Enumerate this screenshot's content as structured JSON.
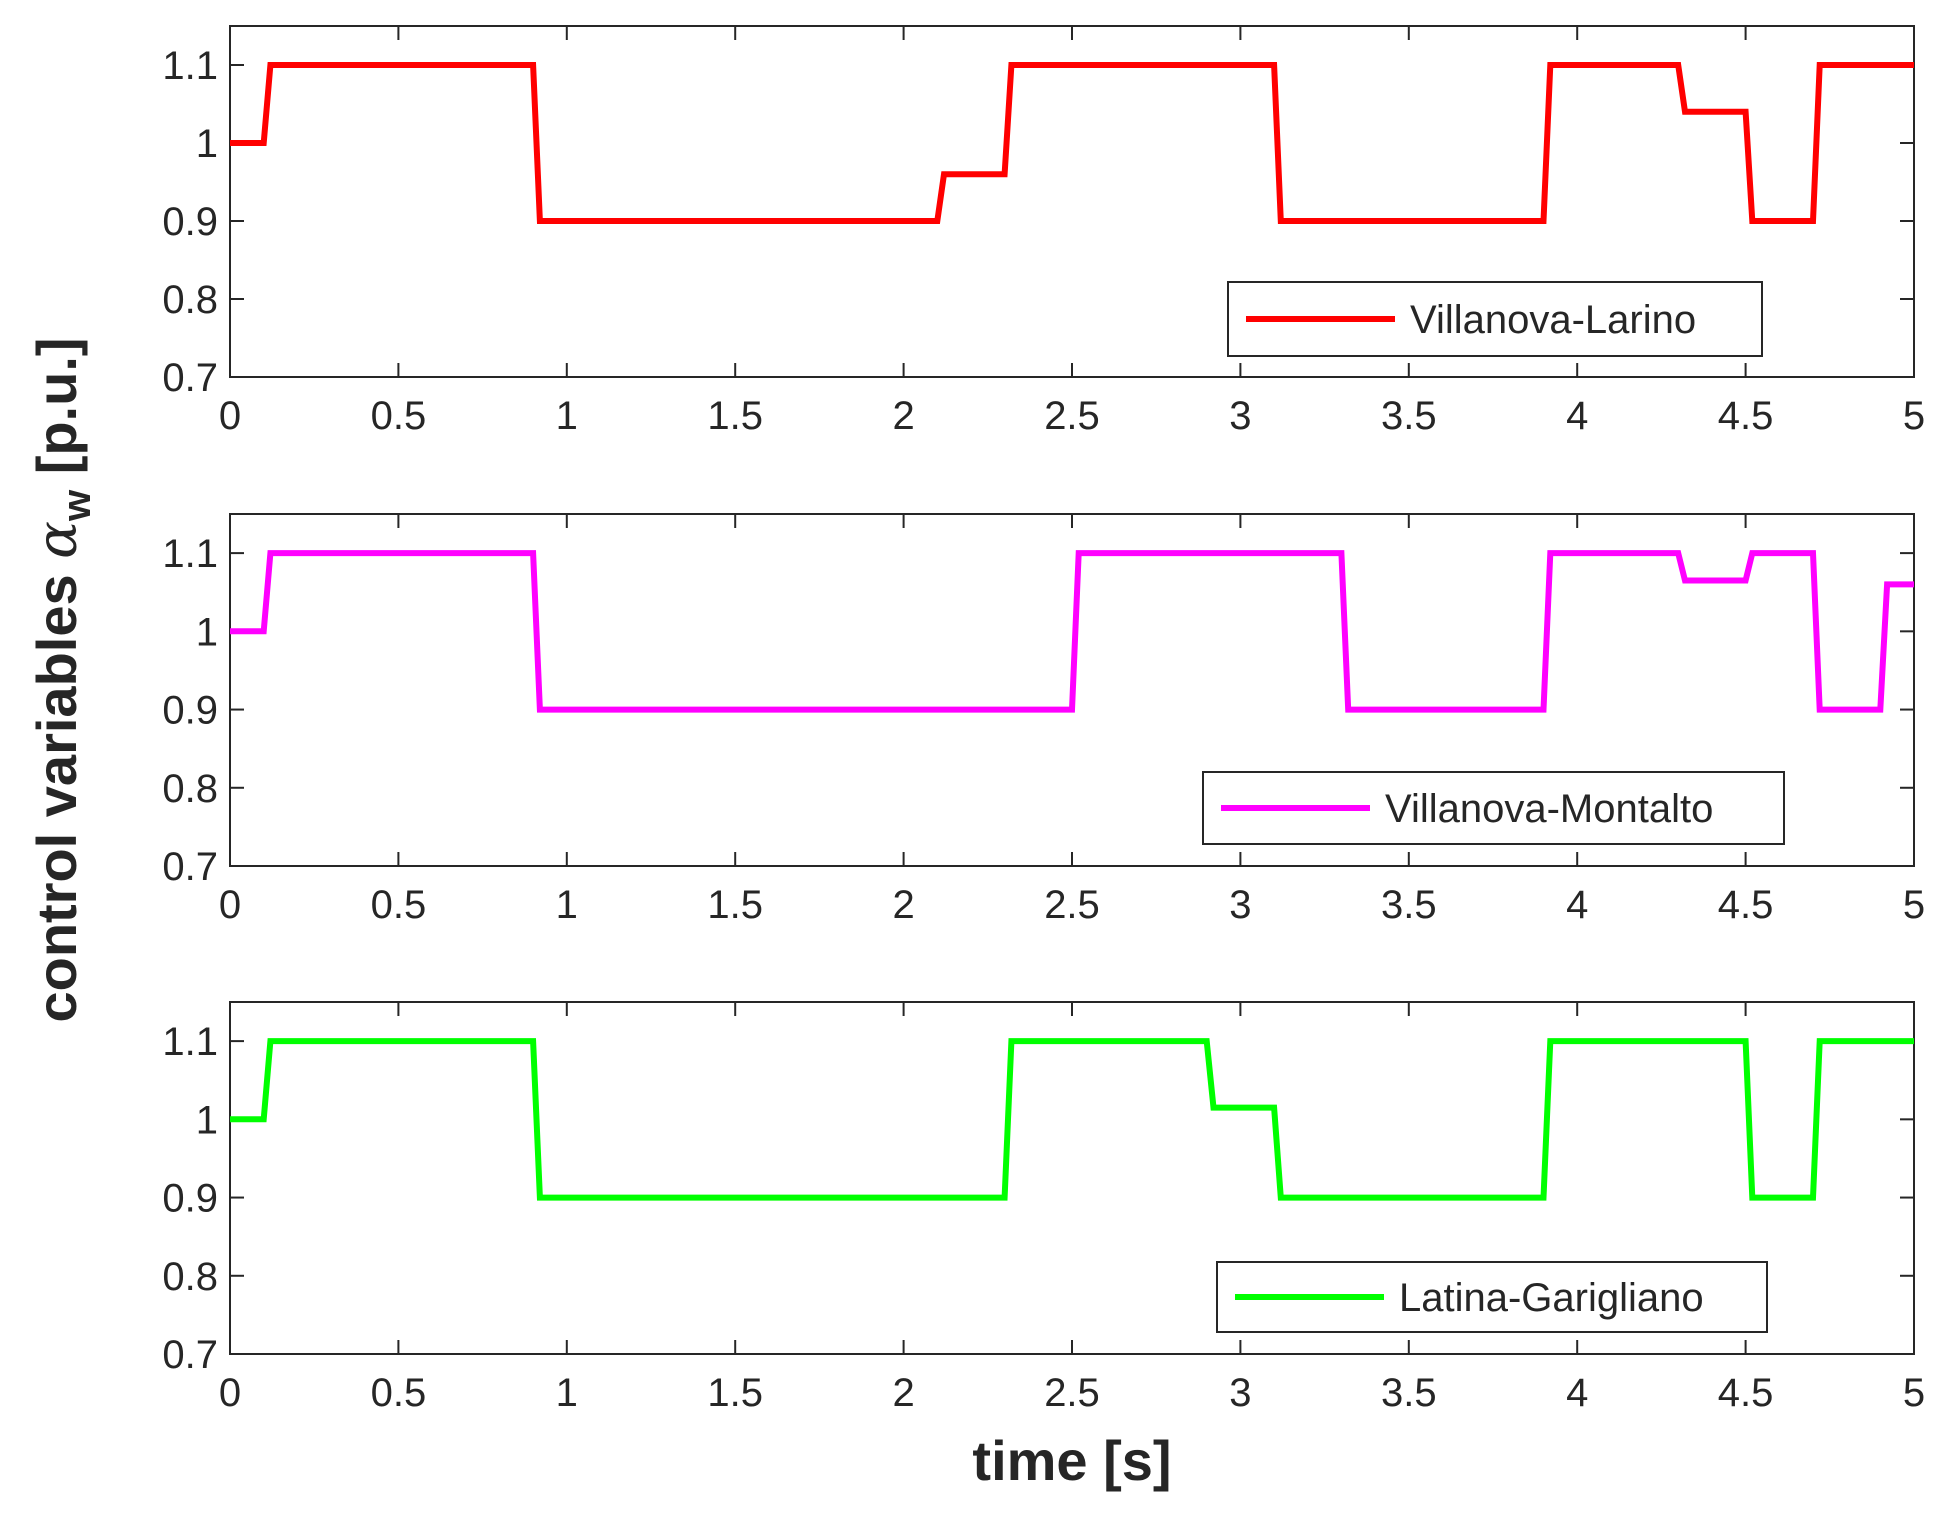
{
  "chart_data": [
    {
      "type": "line",
      "step": true,
      "series": [
        {
          "name": "Villanova-Larino",
          "color": "#ff0000",
          "x": [
            0,
            0.1,
            0.12,
            0.9,
            0.92,
            2.1,
            2.12,
            2.3,
            2.32,
            3.1,
            3.12,
            3.9,
            3.92,
            4.3,
            4.32,
            4.5,
            4.52,
            4.7,
            4.72,
            5.0
          ],
          "y": [
            1.0,
            1.0,
            1.1,
            1.1,
            0.9,
            0.9,
            0.96,
            0.96,
            1.1,
            1.1,
            0.9,
            0.9,
            1.1,
            1.1,
            1.04,
            1.04,
            0.9,
            0.9,
            1.1,
            1.1
          ]
        }
      ],
      "xlim": [
        0,
        5
      ],
      "ylim": [
        0.7,
        1.15
      ],
      "xticks": [
        "0",
        "0.5",
        "1",
        "1.5",
        "2",
        "2.5",
        "3",
        "3.5",
        "4",
        "4.5",
        "5"
      ],
      "yticks": [
        "0.7",
        "0.8",
        "0.9",
        "1",
        "1.1"
      ],
      "legend_position": "bottom-right"
    },
    {
      "type": "line",
      "step": true,
      "series": [
        {
          "name": "Villanova-Montalto",
          "color": "#ff00ff",
          "x": [
            0,
            0.1,
            0.12,
            0.9,
            0.92,
            2.5,
            2.52,
            3.3,
            3.32,
            3.9,
            3.92,
            4.3,
            4.32,
            4.5,
            4.52,
            4.7,
            4.72,
            4.9,
            4.92,
            5.0
          ],
          "y": [
            1.0,
            1.0,
            1.1,
            1.1,
            0.9,
            0.9,
            1.1,
            1.1,
            0.9,
            0.9,
            1.1,
            1.1,
            1.065,
            1.065,
            1.1,
            1.1,
            0.9,
            0.9,
            1.06,
            1.06
          ]
        }
      ],
      "xlim": [
        0,
        5
      ],
      "ylim": [
        0.7,
        1.15
      ],
      "xticks": [
        "0",
        "0.5",
        "1",
        "1.5",
        "2",
        "2.5",
        "3",
        "3.5",
        "4",
        "4.5",
        "5"
      ],
      "yticks": [
        "0.7",
        "0.8",
        "0.9",
        "1",
        "1.1"
      ],
      "legend_position": "bottom-right"
    },
    {
      "type": "line",
      "step": true,
      "series": [
        {
          "name": "Latina-Garigliano",
          "color": "#00ff00",
          "x": [
            0,
            0.1,
            0.12,
            0.9,
            0.92,
            2.3,
            2.32,
            2.9,
            2.92,
            3.1,
            3.12,
            3.9,
            3.92,
            4.5,
            4.52,
            4.7,
            4.72,
            5.0
          ],
          "y": [
            1.0,
            1.0,
            1.1,
            1.1,
            0.9,
            0.9,
            1.1,
            1.1,
            1.015,
            1.015,
            0.9,
            0.9,
            1.1,
            1.1,
            0.9,
            0.9,
            1.1,
            1.1
          ]
        }
      ],
      "xlim": [
        0,
        5
      ],
      "ylim": [
        0.7,
        1.15
      ],
      "xticks": [
        "0",
        "0.5",
        "1",
        "1.5",
        "2",
        "2.5",
        "3",
        "3.5",
        "4",
        "4.5",
        "5"
      ],
      "yticks": [
        "0.7",
        "0.8",
        "0.9",
        "1",
        "1.1"
      ],
      "legend_position": "bottom-right"
    }
  ],
  "labels": {
    "ylabel_main": "control variables ",
    "ylabel_symbol": "α",
    "ylabel_subscript": "w",
    "ylabel_unit": " [p.u.]",
    "xlabel": "time [s]"
  }
}
